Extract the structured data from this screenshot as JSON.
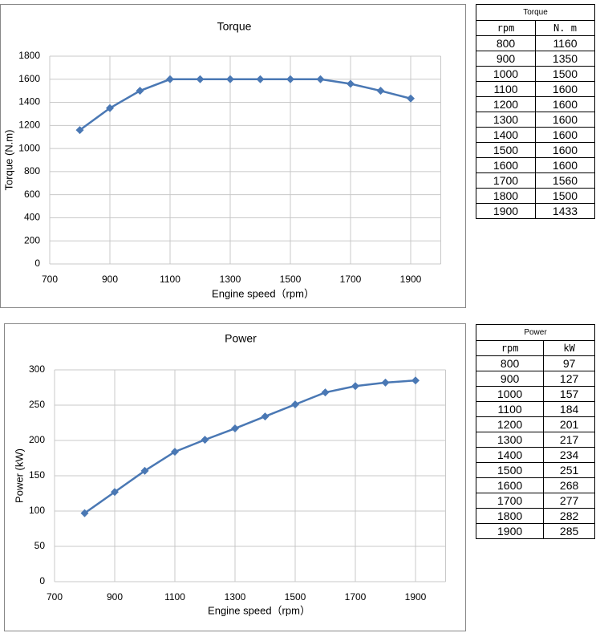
{
  "chart_data": [
    {
      "type": "line",
      "title": "Torque",
      "xlabel": "Engine speed（rpm）",
      "ylabel": "Torque (N.m)",
      "x": [
        800,
        900,
        1000,
        1100,
        1200,
        1300,
        1400,
        1500,
        1600,
        1700,
        1800,
        1900
      ],
      "values": [
        1160,
        1350,
        1500,
        1600,
        1600,
        1600,
        1600,
        1600,
        1600,
        1560,
        1500,
        1433
      ],
      "color": "#4a78b4",
      "xlim": [
        700,
        2000
      ],
      "xticks": [
        700,
        900,
        1100,
        1300,
        1500,
        1700,
        1900
      ],
      "ylim": [
        0,
        1800
      ],
      "yticks": [
        0,
        200,
        400,
        600,
        800,
        1000,
        1200,
        1400,
        1600,
        1800
      ],
      "grid": true
    },
    {
      "type": "line",
      "title": "Power",
      "xlabel": "Engine speed（rpm）",
      "ylabel": "Power (kW)",
      "x": [
        800,
        900,
        1000,
        1100,
        1200,
        1300,
        1400,
        1500,
        1600,
        1700,
        1800,
        1900
      ],
      "values": [
        97,
        127,
        157,
        184,
        201,
        217,
        234,
        251,
        268,
        277,
        282,
        285
      ],
      "color": "#4a78b4",
      "xlim": [
        700,
        2000
      ],
      "xticks": [
        700,
        900,
        1100,
        1300,
        1500,
        1700,
        1900
      ],
      "ylim": [
        0,
        300
      ],
      "yticks": [
        0,
        50,
        100,
        150,
        200,
        250,
        300
      ],
      "grid": true
    }
  ],
  "tables": [
    {
      "title": "Torque",
      "columns": [
        "rpm",
        "N. m"
      ],
      "rows": [
        [
          800,
          1160
        ],
        [
          900,
          1350
        ],
        [
          1000,
          1500
        ],
        [
          1100,
          1600
        ],
        [
          1200,
          1600
        ],
        [
          1300,
          1600
        ],
        [
          1400,
          1600
        ],
        [
          1500,
          1600
        ],
        [
          1600,
          1600
        ],
        [
          1700,
          1560
        ],
        [
          1800,
          1500
        ],
        [
          1900,
          1433
        ]
      ]
    },
    {
      "title": "Power",
      "columns": [
        "rpm",
        "kW"
      ],
      "rows": [
        [
          800,
          97
        ],
        [
          900,
          127
        ],
        [
          1000,
          157
        ],
        [
          1100,
          184
        ],
        [
          1200,
          201
        ],
        [
          1300,
          217
        ],
        [
          1400,
          234
        ],
        [
          1500,
          251
        ],
        [
          1600,
          268
        ],
        [
          1700,
          277
        ],
        [
          1800,
          282
        ],
        [
          1900,
          285
        ]
      ]
    }
  ]
}
